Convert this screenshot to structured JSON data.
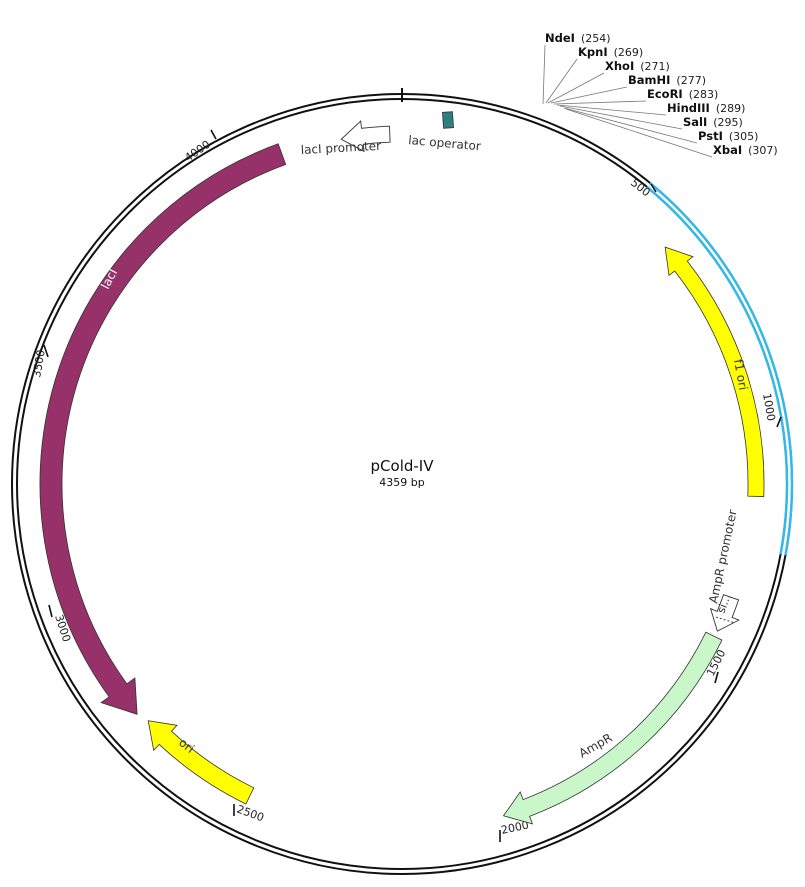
{
  "plasmid": {
    "name": "pCold-IV",
    "length_label": "4359 bp"
  },
  "colors": {
    "lacI": "#97316a",
    "yellow": "#ffff00",
    "ampR": "#c9f7c9",
    "mcs": "#33b8e8",
    "operator": "#2e7f83",
    "promoter": "#ffffff"
  },
  "ticks": [
    "500",
    "1000",
    "1500",
    "2000",
    "2500",
    "3000",
    "3500",
    "4000"
  ],
  "features": {
    "laci_promoter": "lacI promoter",
    "lac_operator": "lac operator",
    "laci": "lacI",
    "f1_ori": "f1 ori",
    "ampr_promoter": "AmpR promoter",
    "sig": "si…",
    "ampr": "AmpR",
    "ori": "ori"
  },
  "sites": [
    {
      "name": "NdeI",
      "pos": "(254)"
    },
    {
      "name": "KpnI",
      "pos": "(269)"
    },
    {
      "name": "XhoI",
      "pos": "(271)"
    },
    {
      "name": "BamHI",
      "pos": "(277)"
    },
    {
      "name": "EcoRI",
      "pos": "(283)"
    },
    {
      "name": "HindIII",
      "pos": "(289)"
    },
    {
      "name": "SalI",
      "pos": "(295)"
    },
    {
      "name": "PstI",
      "pos": "(305)"
    },
    {
      "name": "XbaI",
      "pos": "(307)"
    }
  ]
}
